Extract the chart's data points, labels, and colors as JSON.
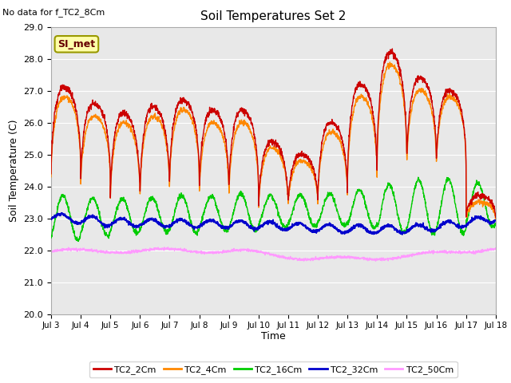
{
  "title": "Soil Temperatures Set 2",
  "top_left_text": "No data for f_TC2_8Cm",
  "box_label": "SI_met",
  "ylabel": "Soil Temperature (C)",
  "xlabel": "Time",
  "ylim": [
    20.0,
    29.0
  ],
  "yticks": [
    20.0,
    21.0,
    22.0,
    23.0,
    24.0,
    25.0,
    26.0,
    27.0,
    28.0,
    29.0
  ],
  "xtick_labels": [
    "Jul 3",
    "Jul 4",
    "Jul 5",
    "Jul 6",
    "Jul 7",
    "Jul 8",
    "Jul 9",
    "Jul 10",
    "Jul 11",
    "Jul 12",
    "Jul 13",
    "Jul 14",
    "Jul 15",
    "Jul 16",
    "Jul 17",
    "Jul 18"
  ],
  "line_colors": [
    "#cc0000",
    "#ff8800",
    "#00cc00",
    "#0000cc",
    "#ff99ff"
  ],
  "line_labels": [
    "TC2_2Cm",
    "TC2_4Cm",
    "TC2_16Cm",
    "TC2_32Cm",
    "TC2_50Cm"
  ],
  "bg_color": "#e8e8e8",
  "fig_bg_color": "#ffffff",
  "n_days": 15,
  "pts_per_day": 144
}
